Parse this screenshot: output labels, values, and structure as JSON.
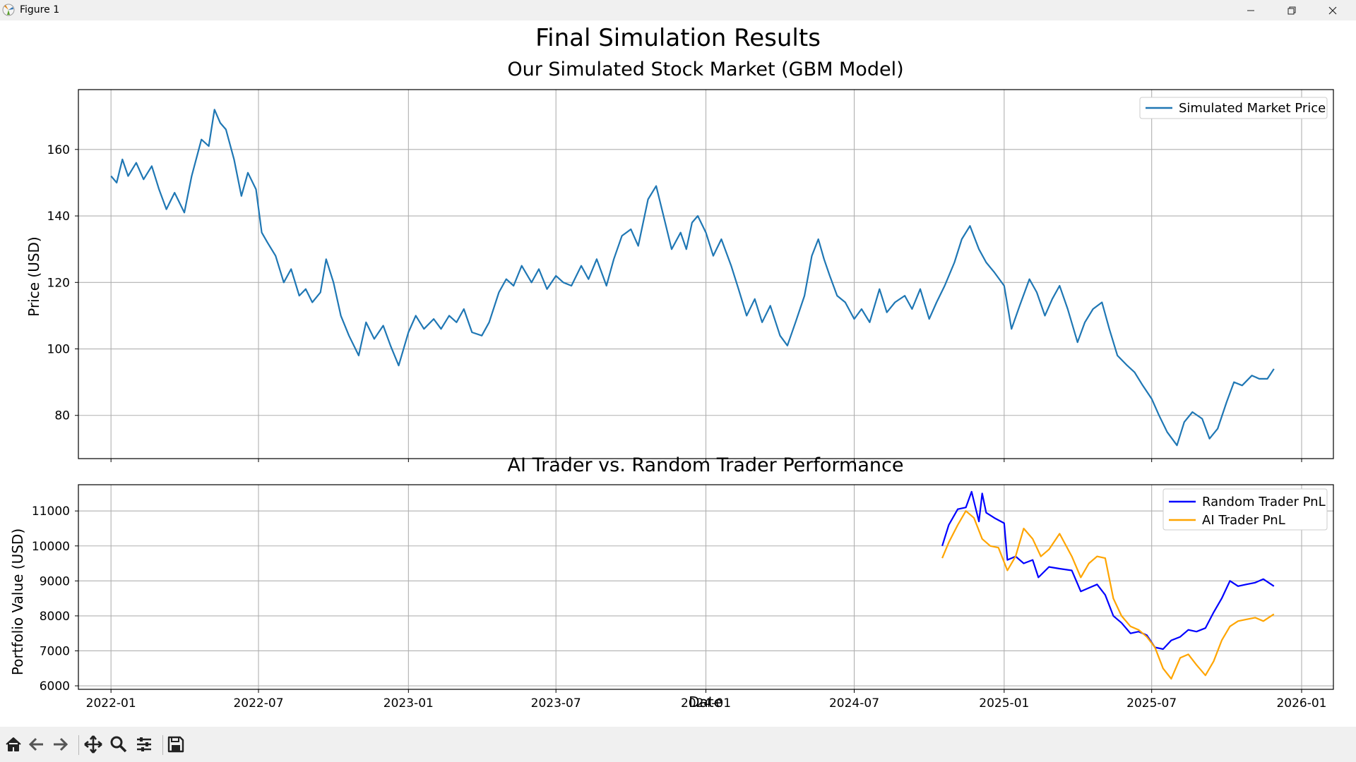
{
  "window": {
    "title": "Figure 1",
    "minimize_icon": "minimize-icon",
    "maximize_icon": "restore-icon",
    "close_icon": "close-icon"
  },
  "figure": {
    "suptitle": "Final Simulation Results"
  },
  "toolbar": {
    "buttons": [
      "home-icon",
      "back-arrow-icon",
      "forward-arrow-icon",
      "pan-move-icon",
      "zoom-magnifier-icon",
      "configure-subplots-icon",
      "save-disk-icon"
    ]
  },
  "colors": {
    "price_line": "#1f77b4",
    "random_trader": "#0000ff",
    "ai_trader": "#ffa500",
    "grid": "#b0b0b0"
  },
  "chart_data": [
    {
      "type": "line",
      "title": "Our Simulated Stock Market (GBM Model)",
      "xlabel": "",
      "ylabel": "Price (USD)",
      "x_ticks": [
        "2022-01",
        "2022-07",
        "2023-01",
        "2023-07",
        "2024-01",
        "2024-07",
        "2025-01",
        "2025-07",
        "2026-01"
      ],
      "y_ticks": [
        80,
        100,
        120,
        140,
        160
      ],
      "xlim": [
        "2021-11-22",
        "2026-02-09"
      ],
      "ylim": [
        67,
        178
      ],
      "grid": true,
      "legend_position": "upper right",
      "series": [
        {
          "name": "Simulated Market Price",
          "color": "#1f77b4",
          "points": [
            [
              "2022-01-01",
              152
            ],
            [
              "2022-01-08",
              150
            ],
            [
              "2022-01-15",
              157
            ],
            [
              "2022-01-22",
              152
            ],
            [
              "2022-02-01",
              156
            ],
            [
              "2022-02-10",
              151
            ],
            [
              "2022-02-20",
              155
            ],
            [
              "2022-03-01",
              148
            ],
            [
              "2022-03-10",
              142
            ],
            [
              "2022-03-20",
              147
            ],
            [
              "2022-04-01",
              141
            ],
            [
              "2022-04-10",
              152
            ],
            [
              "2022-04-22",
              163
            ],
            [
              "2022-05-01",
              161
            ],
            [
              "2022-05-08",
              172
            ],
            [
              "2022-05-15",
              168
            ],
            [
              "2022-05-22",
              166
            ],
            [
              "2022-06-01",
              157
            ],
            [
              "2022-06-10",
              146
            ],
            [
              "2022-06-18",
              153
            ],
            [
              "2022-06-28",
              148
            ],
            [
              "2022-07-05",
              135
            ],
            [
              "2022-07-12",
              132
            ],
            [
              "2022-07-22",
              128
            ],
            [
              "2022-08-01",
              120
            ],
            [
              "2022-08-10",
              124
            ],
            [
              "2022-08-20",
              116
            ],
            [
              "2022-08-28",
              118
            ],
            [
              "2022-09-05",
              114
            ],
            [
              "2022-09-15",
              117
            ],
            [
              "2022-09-22",
              127
            ],
            [
              "2022-10-01",
              120
            ],
            [
              "2022-10-10",
              110
            ],
            [
              "2022-10-20",
              104
            ],
            [
              "2022-11-01",
              98
            ],
            [
              "2022-11-10",
              108
            ],
            [
              "2022-11-20",
              103
            ],
            [
              "2022-12-01",
              107
            ],
            [
              "2022-12-10",
              101
            ],
            [
              "2022-12-20",
              95
            ],
            [
              "2023-01-01",
              105
            ],
            [
              "2023-01-10",
              110
            ],
            [
              "2023-01-20",
              106
            ],
            [
              "2023-02-01",
              109
            ],
            [
              "2023-02-10",
              106
            ],
            [
              "2023-02-20",
              110
            ],
            [
              "2023-03-01",
              108
            ],
            [
              "2023-03-10",
              112
            ],
            [
              "2023-03-20",
              105
            ],
            [
              "2023-04-01",
              104
            ],
            [
              "2023-04-10",
              108
            ],
            [
              "2023-04-22",
              117
            ],
            [
              "2023-05-01",
              121
            ],
            [
              "2023-05-10",
              119
            ],
            [
              "2023-05-20",
              125
            ],
            [
              "2023-06-01",
              120
            ],
            [
              "2023-06-10",
              124
            ],
            [
              "2023-06-20",
              118
            ],
            [
              "2023-07-01",
              122
            ],
            [
              "2023-07-10",
              120
            ],
            [
              "2023-07-20",
              119
            ],
            [
              "2023-08-01",
              125
            ],
            [
              "2023-08-10",
              121
            ],
            [
              "2023-08-20",
              127
            ],
            [
              "2023-09-01",
              119
            ],
            [
              "2023-09-10",
              127
            ],
            [
              "2023-09-20",
              134
            ],
            [
              "2023-10-01",
              136
            ],
            [
              "2023-10-10",
              131
            ],
            [
              "2023-10-22",
              145
            ],
            [
              "2023-11-01",
              149
            ],
            [
              "2023-11-10",
              140
            ],
            [
              "2023-11-20",
              130
            ],
            [
              "2023-12-01",
              135
            ],
            [
              "2023-12-08",
              130
            ],
            [
              "2023-12-15",
              138
            ],
            [
              "2023-12-22",
              140
            ],
            [
              "2024-01-01",
              135
            ],
            [
              "2024-01-10",
              128
            ],
            [
              "2024-01-20",
              133
            ],
            [
              "2024-02-01",
              125
            ],
            [
              "2024-02-10",
              118
            ],
            [
              "2024-02-20",
              110
            ],
            [
              "2024-03-01",
              115
            ],
            [
              "2024-03-10",
              108
            ],
            [
              "2024-03-20",
              113
            ],
            [
              "2024-04-01",
              104
            ],
            [
              "2024-04-10",
              101
            ],
            [
              "2024-04-20",
              108
            ],
            [
              "2024-05-01",
              116
            ],
            [
              "2024-05-10",
              128
            ],
            [
              "2024-05-18",
              133
            ],
            [
              "2024-05-25",
              127
            ],
            [
              "2024-06-01",
              122
            ],
            [
              "2024-06-10",
              116
            ],
            [
              "2024-06-20",
              114
            ],
            [
              "2024-07-01",
              109
            ],
            [
              "2024-07-10",
              112
            ],
            [
              "2024-07-20",
              108
            ],
            [
              "2024-08-01",
              118
            ],
            [
              "2024-08-10",
              111
            ],
            [
              "2024-08-20",
              114
            ],
            [
              "2024-09-01",
              116
            ],
            [
              "2024-09-10",
              112
            ],
            [
              "2024-09-20",
              118
            ],
            [
              "2024-10-01",
              109
            ],
            [
              "2024-10-10",
              114
            ],
            [
              "2024-10-20",
              119
            ],
            [
              "2024-11-01",
              126
            ],
            [
              "2024-11-10",
              133
            ],
            [
              "2024-11-20",
              137
            ],
            [
              "2024-12-01",
              130
            ],
            [
              "2024-12-10",
              126
            ],
            [
              "2024-12-20",
              123
            ],
            [
              "2025-01-01",
              119
            ],
            [
              "2025-01-10",
              106
            ],
            [
              "2025-01-20",
              113
            ],
            [
              "2025-02-01",
              121
            ],
            [
              "2025-02-10",
              117
            ],
            [
              "2025-02-20",
              110
            ],
            [
              "2025-03-01",
              115
            ],
            [
              "2025-03-10",
              119
            ],
            [
              "2025-03-20",
              112
            ],
            [
              "2025-04-01",
              102
            ],
            [
              "2025-04-10",
              108
            ],
            [
              "2025-04-20",
              112
            ],
            [
              "2025-05-01",
              114
            ],
            [
              "2025-05-10",
              106
            ],
            [
              "2025-05-20",
              98
            ],
            [
              "2025-06-01",
              95
            ],
            [
              "2025-06-10",
              93
            ],
            [
              "2025-06-20",
              89
            ],
            [
              "2025-07-01",
              85
            ],
            [
              "2025-07-10",
              80
            ],
            [
              "2025-07-20",
              75
            ],
            [
              "2025-08-01",
              71
            ],
            [
              "2025-08-10",
              78
            ],
            [
              "2025-08-20",
              81
            ],
            [
              "2025-09-01",
              79
            ],
            [
              "2025-09-10",
              73
            ],
            [
              "2025-09-20",
              76
            ],
            [
              "2025-10-01",
              84
            ],
            [
              "2025-10-10",
              90
            ],
            [
              "2025-10-20",
              89
            ],
            [
              "2025-11-01",
              92
            ],
            [
              "2025-11-10",
              91
            ],
            [
              "2025-11-20",
              91
            ],
            [
              "2025-11-28",
              94
            ]
          ]
        }
      ]
    },
    {
      "type": "line",
      "title": "AI Trader vs. Random Trader Performance",
      "xlabel": "Date",
      "ylabel": "Portfolio Value (USD)",
      "x_ticks": [
        "2022-01",
        "2022-07",
        "2023-01",
        "2023-07",
        "2024-01",
        "2024-07",
        "2025-01",
        "2025-07",
        "2026-01"
      ],
      "y_ticks": [
        6000,
        7000,
        8000,
        9000,
        10000,
        11000
      ],
      "xlim": [
        "2021-11-22",
        "2026-02-09"
      ],
      "ylim": [
        5900,
        11750
      ],
      "grid": true,
      "legend_position": "upper right",
      "series": [
        {
          "name": "Random Trader PnL",
          "color": "#0000ff",
          "points": [
            [
              "2024-10-17",
              10000
            ],
            [
              "2024-10-25",
              10600
            ],
            [
              "2024-11-05",
              11050
            ],
            [
              "2024-11-15",
              11100
            ],
            [
              "2024-11-22",
              11550
            ],
            [
              "2024-12-01",
              10700
            ],
            [
              "2024-12-05",
              11500
            ],
            [
              "2024-12-10",
              10950
            ],
            [
              "2024-12-20",
              10800
            ],
            [
              "2025-01-01",
              10650
            ],
            [
              "2025-01-05",
              9600
            ],
            [
              "2025-01-15",
              9700
            ],
            [
              "2025-01-25",
              9500
            ],
            [
              "2025-02-05",
              9600
            ],
            [
              "2025-02-12",
              9100
            ],
            [
              "2025-02-25",
              9400
            ],
            [
              "2025-03-10",
              9350
            ],
            [
              "2025-03-25",
              9300
            ],
            [
              "2025-04-05",
              8700
            ],
            [
              "2025-04-15",
              8800
            ],
            [
              "2025-04-25",
              8900
            ],
            [
              "2025-05-05",
              8600
            ],
            [
              "2025-05-15",
              8000
            ],
            [
              "2025-05-25",
              7800
            ],
            [
              "2025-06-05",
              7500
            ],
            [
              "2025-06-15",
              7550
            ],
            [
              "2025-06-25",
              7450
            ],
            [
              "2025-07-05",
              7100
            ],
            [
              "2025-07-15",
              7050
            ],
            [
              "2025-07-25",
              7300
            ],
            [
              "2025-08-05",
              7400
            ],
            [
              "2025-08-15",
              7600
            ],
            [
              "2025-08-25",
              7550
            ],
            [
              "2025-09-05",
              7650
            ],
            [
              "2025-09-15",
              8100
            ],
            [
              "2025-09-25",
              8500
            ],
            [
              "2025-10-05",
              9000
            ],
            [
              "2025-10-15",
              8850
            ],
            [
              "2025-10-25",
              8900
            ],
            [
              "2025-11-05",
              8950
            ],
            [
              "2025-11-15",
              9050
            ],
            [
              "2025-11-28",
              8850
            ]
          ]
        },
        {
          "name": "AI Trader PnL",
          "color": "#ffa500",
          "points": [
            [
              "2024-10-17",
              9650
            ],
            [
              "2024-10-25",
              10100
            ],
            [
              "2024-11-05",
              10600
            ],
            [
              "2024-11-15",
              11000
            ],
            [
              "2024-11-25",
              10800
            ],
            [
              "2024-12-05",
              10200
            ],
            [
              "2024-12-15",
              10000
            ],
            [
              "2024-12-25",
              9950
            ],
            [
              "2025-01-05",
              9300
            ],
            [
              "2025-01-15",
              9700
            ],
            [
              "2025-01-25",
              10500
            ],
            [
              "2025-02-05",
              10200
            ],
            [
              "2025-02-15",
              9700
            ],
            [
              "2025-02-25",
              9900
            ],
            [
              "2025-03-10",
              10350
            ],
            [
              "2025-03-25",
              9700
            ],
            [
              "2025-04-05",
              9100
            ],
            [
              "2025-04-15",
              9500
            ],
            [
              "2025-04-25",
              9700
            ],
            [
              "2025-05-05",
              9650
            ],
            [
              "2025-05-15",
              8500
            ],
            [
              "2025-05-25",
              8000
            ],
            [
              "2025-06-05",
              7700
            ],
            [
              "2025-06-15",
              7600
            ],
            [
              "2025-06-25",
              7400
            ],
            [
              "2025-07-05",
              7100
            ],
            [
              "2025-07-15",
              6500
            ],
            [
              "2025-07-25",
              6200
            ],
            [
              "2025-08-05",
              6800
            ],
            [
              "2025-08-15",
              6900
            ],
            [
              "2025-08-25",
              6600
            ],
            [
              "2025-09-05",
              6300
            ],
            [
              "2025-09-15",
              6700
            ],
            [
              "2025-09-25",
              7300
            ],
            [
              "2025-10-05",
              7700
            ],
            [
              "2025-10-15",
              7850
            ],
            [
              "2025-10-25",
              7900
            ],
            [
              "2025-11-05",
              7950
            ],
            [
              "2025-11-15",
              7850
            ],
            [
              "2025-11-28",
              8050
            ]
          ]
        }
      ]
    }
  ]
}
